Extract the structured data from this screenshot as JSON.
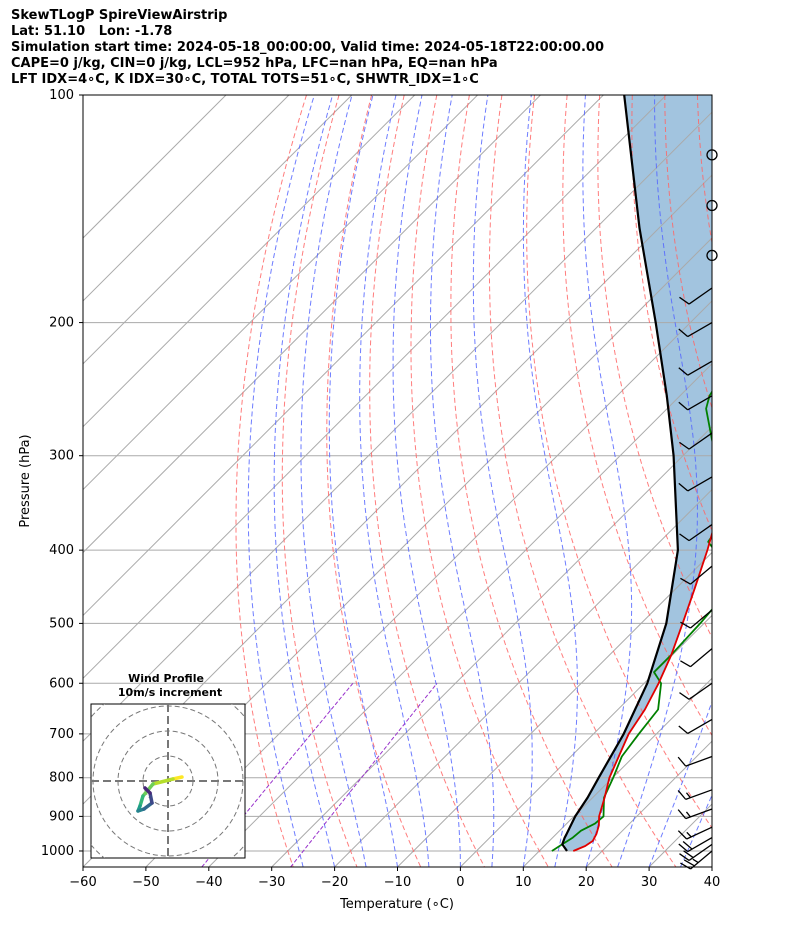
{
  "header": {
    "line1": "SkewTLogP SpireViewAirstrip",
    "line2": "Lat: 51.10   Lon: -1.78",
    "line3": "Simulation start time: 2024-05-18_00:00:00, Valid time: 2024-05-18T22:00:00.00",
    "line4": "CAPE=0 j/kg, CIN=0 j/kg, LCL=952 hPa, LFC=nan hPa, EQ=nan hPa",
    "line5": "LFT IDX=4∘C, K IDX=30∘C, TOTAL TOTS=51∘C, SHWTR_IDX=1∘C"
  },
  "chart_data": {
    "type": "line",
    "xlabel": "Temperature (∘C)",
    "ylabel": "Pressure (hPa)",
    "xlim": [
      -60,
      40
    ],
    "ylim": [
      1050,
      100
    ],
    "yscale": "log",
    "x_ticks": [
      "−60",
      "−50",
      "−40",
      "−30",
      "−20",
      "−10",
      "0",
      "10",
      "20",
      "30",
      "40"
    ],
    "y_ticks": [
      "100",
      "200",
      "300",
      "400",
      "500",
      "600",
      "700",
      "800",
      "900",
      "1000"
    ],
    "y_tick_values": [
      100,
      200,
      300,
      400,
      500,
      600,
      700,
      800,
      900,
      1000
    ],
    "grid": true,
    "colors": {
      "temperature": "#e00000",
      "dewpoint": "#008000",
      "parcel": "#000000",
      "fill": "#a2c4df",
      "dry_adiabat": "#ff6666",
      "moist_adiabat": "#5566ff",
      "mixing_ratio": "#9933cc",
      "isotherm": "#aaaaaa"
    },
    "temperature": {
      "p": [
        1000,
        985,
        970,
        950,
        925,
        900,
        850,
        800,
        700,
        650,
        600,
        550,
        500,
        450,
        400,
        350,
        320,
        300,
        270,
        250,
        235,
        220,
        210,
        200,
        180,
        160,
        150,
        140,
        130,
        120,
        110,
        100
      ],
      "t": [
        15.4,
        16.5,
        16.9,
        16.4,
        15.4,
        14.0,
        11.9,
        9.5,
        5.6,
        4.3,
        2.3,
        -0.2,
        -3.4,
        -7.0,
        -11.1,
        -16.1,
        -19.5,
        -22.0,
        -26.3,
        -29.1,
        -30.9,
        -31.6,
        -30.4,
        -29.0,
        -26.4,
        -24.0,
        -22.4,
        -21.2,
        -19.6,
        -19.0,
        -17.7,
        -16.2
      ]
    },
    "dewpoint": {
      "p": [
        1000,
        980,
        960,
        940,
        920,
        900,
        850,
        800,
        750,
        700,
        650,
        600,
        580,
        550,
        500,
        470,
        440,
        400,
        390,
        350,
        330,
        300,
        280,
        260,
        250,
        240,
        230,
        215,
        200,
        185,
        175,
        165,
        100
      ],
      "t": [
        12.0,
        12.6,
        13.2,
        13.4,
        14.5,
        14.7,
        11.8,
        10.1,
        8.1,
        7.2,
        6.4,
        2.7,
        -0.2,
        -0.2,
        -0.6,
        -1.1,
        -2.0,
        -10.0,
        -12.3,
        -14.1,
        -19.2,
        -24.9,
        -29.2,
        -33.8,
        -35.3,
        -36.1,
        -36.9,
        -37.4,
        -37.4,
        -41.1,
        -45.3,
        -45.5,
        -30.0
      ]
    },
    "parcel": {
      "p": [
        1000,
        980,
        960,
        952,
        900,
        850,
        800,
        700,
        600,
        500,
        400,
        300,
        250,
        200,
        150,
        100
      ],
      "t": [
        14.4,
        12.6,
        11.9,
        11.7,
        10.2,
        9.2,
        7.8,
        4.8,
        0.5,
        -6.0,
        -15.8,
        -31.5,
        -42.1,
        -55.5,
        -73.1,
        -96.7
      ]
    },
    "shading": {
      "between": [
        "temperature",
        "parcel"
      ],
      "p_range": [
        1000,
        100
      ]
    },
    "wind_barbs": {
      "x": 40,
      "barbs": [
        {
          "p": 1000,
          "speed": 25,
          "dir": 230
        },
        {
          "p": 980,
          "speed": 20,
          "dir": 235
        },
        {
          "p": 960,
          "speed": 20,
          "dir": 240
        },
        {
          "p": 930,
          "speed": 15,
          "dir": 245
        },
        {
          "p": 880,
          "speed": 15,
          "dir": 250
        },
        {
          "p": 830,
          "speed": 15,
          "dir": 250
        },
        {
          "p": 750,
          "speed": 10,
          "dir": 250
        },
        {
          "p": 670,
          "speed": 10,
          "dir": 240
        },
        {
          "p": 600,
          "speed": 10,
          "dir": 235
        },
        {
          "p": 540,
          "speed": 10,
          "dir": 230
        },
        {
          "p": 480,
          "speed": 10,
          "dir": 230
        },
        {
          "p": 420,
          "speed": 10,
          "dir": 230
        },
        {
          "p": 370,
          "speed": 10,
          "dir": 235
        },
        {
          "p": 320,
          "speed": 10,
          "dir": 240
        },
        {
          "p": 280,
          "speed": 10,
          "dir": 235
        },
        {
          "p": 250,
          "speed": 10,
          "dir": 240
        },
        {
          "p": 225,
          "speed": 10,
          "dir": 240
        },
        {
          "p": 200,
          "speed": 10,
          "dir": 240
        },
        {
          "p": 180,
          "speed": 10,
          "dir": 235
        }
      ],
      "calm_p": [
        163,
        140,
        120
      ]
    }
  },
  "inset": {
    "title_line1": "Wind Profile",
    "title_line2": "10m/s increment",
    "hodograph_u": [
      1.4,
      0.5,
      -1.5,
      -2.5,
      -2.8,
      -3.0,
      -2.4,
      -1.6,
      -1.8,
      -2.3
    ],
    "hodograph_v": [
      0.4,
      0.2,
      -0.3,
      -1.5,
      -2.5,
      -3.0,
      -2.8,
      -2.2,
      -1.2,
      -0.7
    ]
  }
}
